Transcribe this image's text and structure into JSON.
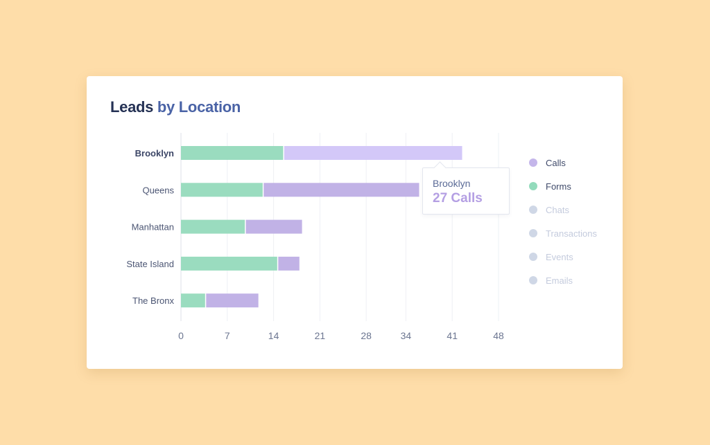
{
  "card": {
    "title_main": "Leads",
    "title_accent": "by Location"
  },
  "chart_data": {
    "type": "bar",
    "orientation": "horizontal",
    "stacked": true,
    "categories": [
      "Brooklyn",
      "Queens",
      "Manhattan",
      "State Island",
      "The Bronx"
    ],
    "series": [
      {
        "name": "Forms",
        "values": [
          15.5,
          12.4,
          9.7,
          14.6,
          3.7
        ]
      },
      {
        "name": "Calls",
        "values": [
          27,
          23.6,
          8.6,
          3.3,
          8.0
        ]
      }
    ],
    "xticks": [
      0,
      7,
      14,
      21,
      28,
      34,
      41,
      48
    ],
    "xlim": [
      0,
      48
    ],
    "grid": true,
    "highlight_category": "Brooklyn"
  },
  "legend": {
    "items": [
      {
        "label": "Calls",
        "color": "#c4b6ea",
        "active": true
      },
      {
        "label": "Forms",
        "color": "#93dbbc",
        "active": true
      },
      {
        "label": "Chats",
        "color": "#cfd7e6",
        "active": false
      },
      {
        "label": "Transactions",
        "color": "#cfd7e6",
        "active": false
      },
      {
        "label": "Events",
        "color": "#cfd7e6",
        "active": false
      },
      {
        "label": "Emails",
        "color": "#cfd7e6",
        "active": false
      }
    ]
  },
  "tooltip": {
    "location": "Brooklyn",
    "value_text": "27 Calls"
  },
  "colors": {
    "forms": "#9adcbf",
    "calls": "#c1b2e6",
    "calls_highlight": "#d3c8f8",
    "grid": "#eef0f4",
    "axis": "#dde2ea"
  }
}
